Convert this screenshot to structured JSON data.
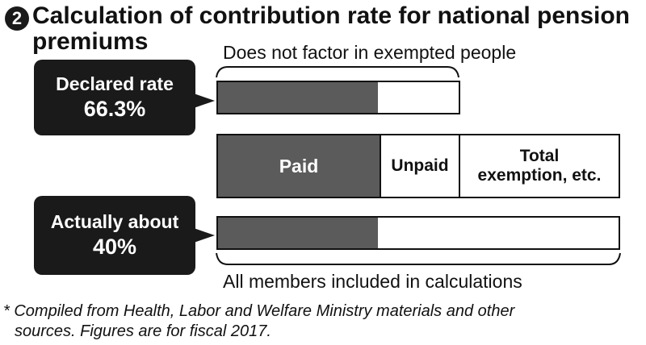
{
  "header": {
    "number": "2",
    "title": "Calculation of contribution rate for national pension premiums"
  },
  "declared": {
    "label": "Declared rate",
    "value": "66.3%",
    "rate": 0.663,
    "caption": "Does not factor in exempted people"
  },
  "legend_bar": {
    "paid": "Paid",
    "unpaid": "Unpaid",
    "exempt_line1": "Total",
    "exempt_line2": "exemption, etc."
  },
  "actual": {
    "label": "Actually about",
    "value": "40%",
    "rate": 0.4,
    "caption": "All members included in calculations"
  },
  "footnote": {
    "line1": "* Compiled from Health, Labor and Welfare Ministry materials and other",
    "line2": "sources. Figures are for fiscal 2017."
  },
  "colors": {
    "paid": "#5b5b5b",
    "callout": "#1a1a1a"
  }
}
